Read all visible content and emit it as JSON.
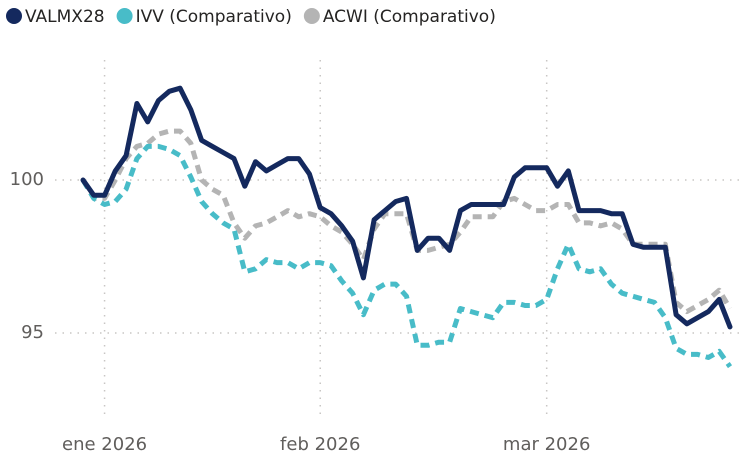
{
  "chart_data": {
    "type": "line",
    "legend": "top-left",
    "grid": true,
    "categories": [
      null,
      null,
      "ene 2026",
      null,
      null,
      null,
      null,
      null,
      null,
      null,
      null,
      null,
      null,
      null,
      null,
      null,
      null,
      null,
      null,
      null,
      null,
      null,
      "feb 2026",
      null,
      null,
      null,
      null,
      null,
      null,
      null,
      null,
      null,
      null,
      null,
      null,
      null,
      null,
      null,
      null,
      null,
      null,
      null,
      null,
      "mar 2026",
      null,
      null,
      null,
      null,
      null,
      null,
      null,
      null,
      null,
      null,
      null,
      null,
      null,
      null,
      null,
      null,
      null
    ],
    "ylim": [
      92.2,
      103.9
    ],
    "yticks": [
      95,
      100
    ],
    "series": [
      {
        "name": "VALMX28",
        "color": "#14295e",
        "style": "solid",
        "values": [
          100.0,
          99.5,
          99.5,
          100.3,
          100.8,
          102.5,
          101.9,
          102.6,
          102.9,
          103.0,
          102.3,
          101.3,
          101.1,
          100.9,
          100.7,
          99.8,
          100.6,
          100.3,
          100.5,
          100.7,
          100.7,
          100.2,
          99.1,
          98.9,
          98.5,
          98.0,
          96.8,
          98.7,
          99.0,
          99.3,
          99.4,
          97.7,
          98.1,
          98.1,
          97.7,
          99.0,
          99.2,
          99.2,
          99.2,
          99.2,
          100.1,
          100.4,
          100.4,
          100.4,
          99.8,
          100.3,
          99.0,
          99.0,
          99.0,
          98.9,
          98.9,
          97.9,
          97.8,
          97.8,
          97.8,
          95.6,
          95.3,
          95.5,
          95.7,
          96.1,
          95.2
        ]
      },
      {
        "name": "IVV (Comparativo)",
        "color": "#48bcc8",
        "style": "dashed",
        "values": [
          100.0,
          99.4,
          99.2,
          99.3,
          99.7,
          100.7,
          101.1,
          101.1,
          101.0,
          100.8,
          100.1,
          99.3,
          98.9,
          98.6,
          98.4,
          97.0,
          97.1,
          97.4,
          97.3,
          97.3,
          97.1,
          97.3,
          97.3,
          97.2,
          96.7,
          96.3,
          95.6,
          96.4,
          96.6,
          96.6,
          96.2,
          94.6,
          94.6,
          94.7,
          94.7,
          95.8,
          95.7,
          95.6,
          95.5,
          96.0,
          96.0,
          95.9,
          95.9,
          96.1,
          97.1,
          97.9,
          97.1,
          97.0,
          97.1,
          96.6,
          96.3,
          96.2,
          96.1,
          96.0,
          95.5,
          94.5,
          94.3,
          94.3,
          94.2,
          94.4,
          93.9
        ]
      },
      {
        "name": "ACWI (Comparativo)",
        "color": "#b4b4b4",
        "style": "dashed",
        "values": [
          100.0,
          99.4,
          99.4,
          100.0,
          100.7,
          101.1,
          101.2,
          101.5,
          101.6,
          101.6,
          101.2,
          100.0,
          99.7,
          99.5,
          98.6,
          98.1,
          98.5,
          98.6,
          98.8,
          99.0,
          98.8,
          98.9,
          98.8,
          98.5,
          98.3,
          97.9,
          97.4,
          98.4,
          98.9,
          98.9,
          98.9,
          97.7,
          97.7,
          97.8,
          97.9,
          98.3,
          98.8,
          98.8,
          98.8,
          99.3,
          99.4,
          99.2,
          99.0,
          99.0,
          99.2,
          99.2,
          98.6,
          98.6,
          98.5,
          98.6,
          98.4,
          97.9,
          97.9,
          97.9,
          97.9,
          96.0,
          95.7,
          95.9,
          96.1,
          96.4,
          95.8
        ]
      }
    ]
  }
}
